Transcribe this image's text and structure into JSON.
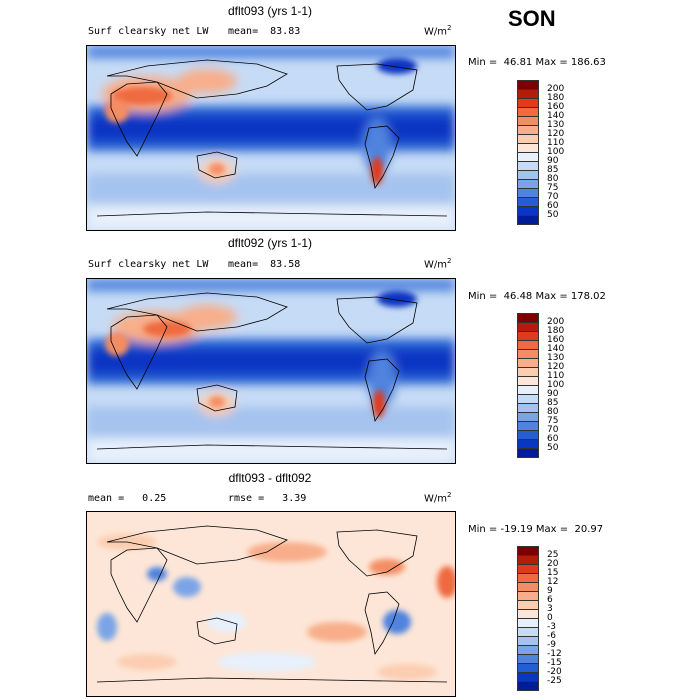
{
  "season": "SON",
  "panels": [
    {
      "id": "top",
      "title": "dflt093 (yrs 1-1)",
      "left_text": "Surf clearsky net LW",
      "center_text": "mean=  83.83",
      "units_base": "W/m",
      "units_exp": "2",
      "minmax": "Min =  46.81 Max = 186.63",
      "colorbar": {
        "labels": [
          "200",
          "180",
          "160",
          "140",
          "130",
          "120",
          "110",
          "100",
          "90",
          "85",
          "80",
          "75",
          "70",
          "60",
          "50"
        ],
        "colors": [
          "#7d0000",
          "#b51b0c",
          "#de3a1c",
          "#ef6a3f",
          "#f48d63",
          "#f8ae8a",
          "#fbcdb1",
          "#fde6d7",
          "#e7f0fb",
          "#c6dbf5",
          "#a5c3ef",
          "#7aa4e7",
          "#4f83de",
          "#245ed2",
          "#0a36c4",
          "#001c96"
        ]
      }
    },
    {
      "id": "middle",
      "title": "dflt092 (yrs 1-1)",
      "left_text": "Surf clearsky net LW",
      "center_text": "mean=  83.58",
      "units_base": "W/m",
      "units_exp": "2",
      "minmax": "Min =  46.48 Max = 178.02",
      "colorbar": {
        "labels": [
          "200",
          "180",
          "160",
          "140",
          "130",
          "120",
          "110",
          "100",
          "90",
          "85",
          "80",
          "75",
          "70",
          "60",
          "50"
        ],
        "colors": [
          "#7d0000",
          "#b51b0c",
          "#de3a1c",
          "#ef6a3f",
          "#f48d63",
          "#f8ae8a",
          "#fbcdb1",
          "#fde6d7",
          "#e7f0fb",
          "#c6dbf5",
          "#a5c3ef",
          "#7aa4e7",
          "#4f83de",
          "#245ed2",
          "#0a36c4",
          "#001c96"
        ]
      }
    },
    {
      "id": "bottom",
      "title": "dflt093 - dflt092",
      "left_text": "mean =   0.25",
      "center_text": "rmse =   3.39",
      "units_base": "W/m",
      "units_exp": "2",
      "minmax": "Min = -19.19 Max =  20.97",
      "colorbar": {
        "labels": [
          "25",
          "20",
          "15",
          "12",
          "9",
          "6",
          "3",
          "0",
          "-3",
          "-6",
          "-9",
          "-12",
          "-15",
          "-20",
          "-25"
        ],
        "colors": [
          "#7d0000",
          "#b51b0c",
          "#de3a1c",
          "#ef6a3f",
          "#f48d63",
          "#f8ae8a",
          "#fbcdb1",
          "#fde6d7",
          "#e7f0fb",
          "#c6dbf5",
          "#a5c3ef",
          "#7aa4e7",
          "#4f83de",
          "#245ed2",
          "#0a36c4",
          "#001c96"
        ]
      }
    }
  ]
}
